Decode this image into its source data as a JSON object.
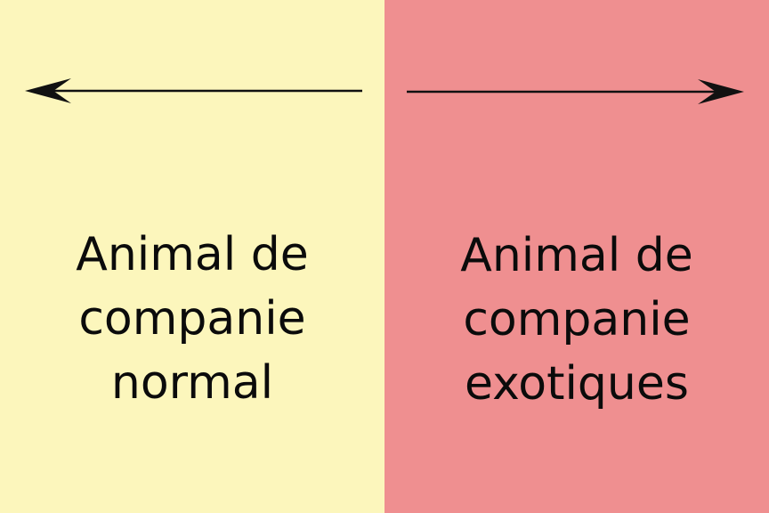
{
  "colors": {
    "left_background": "#FCF6BC",
    "right_background": "#EF8F90",
    "arrow": "#111111",
    "text": "#0b0b0b"
  },
  "left_panel": {
    "arrow_direction": "left",
    "label_lines": [
      "Animal de",
      "companie",
      "normal"
    ]
  },
  "right_panel": {
    "arrow_direction": "right",
    "label_lines": [
      "Animal de",
      "companie",
      "exotiques"
    ]
  }
}
